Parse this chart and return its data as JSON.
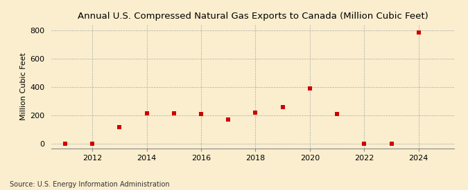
{
  "title": "Annual U.S. Compressed Natural Gas Exports to Canada (Million Cubic Feet)",
  "ylabel": "Million Cubic Feet",
  "source": "Source: U.S. Energy Information Administration",
  "years": [
    2011,
    2012,
    2013,
    2014,
    2015,
    2016,
    2017,
    2018,
    2019,
    2020,
    2021,
    2022,
    2023,
    2024
  ],
  "values": [
    0,
    0,
    120,
    215,
    215,
    210,
    170,
    220,
    260,
    390,
    210,
    0,
    0,
    785
  ],
  "marker_color": "#cc0000",
  "marker": "s",
  "marker_size": 4,
  "bg_color": "#faeece",
  "grid_color": "#aaaaaa",
  "ylim": [
    -30,
    840
  ],
  "yticks": [
    0,
    200,
    400,
    600,
    800
  ],
  "xlim": [
    2010.5,
    2025.3
  ],
  "xticks": [
    2012,
    2014,
    2016,
    2018,
    2020,
    2022,
    2024
  ],
  "title_fontsize": 9.5,
  "axis_fontsize": 8,
  "source_fontsize": 7.0
}
